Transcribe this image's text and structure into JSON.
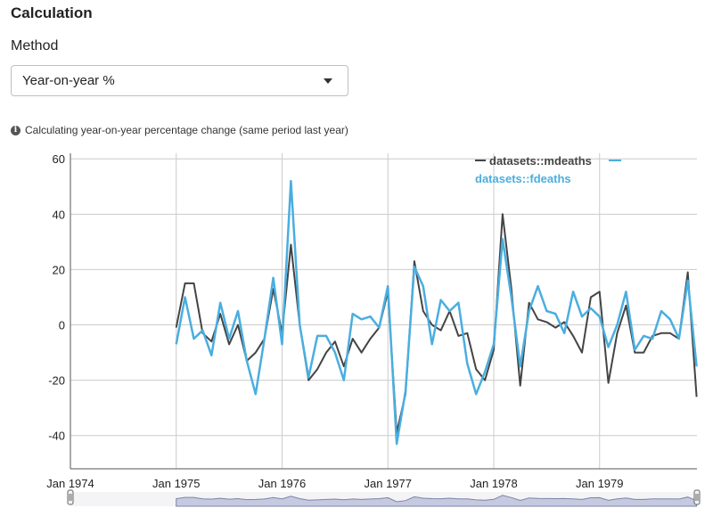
{
  "section": {
    "title": "Calculation"
  },
  "method": {
    "label": "Method",
    "selected": "Year-on-year %"
  },
  "info": {
    "text": "Calculating year-on-year percentage change (same period last year)"
  },
  "chart_data": {
    "type": "line",
    "xlabel": "",
    "ylabel": "",
    "ylim": [
      -50,
      60
    ],
    "yticks": [
      -40,
      -20,
      0,
      20,
      40,
      60
    ],
    "xlim": [
      1974,
      1979.92
    ],
    "xticks": [
      {
        "value": 1974,
        "label": "Jan 1974"
      },
      {
        "value": 1975,
        "label": "Jan 1975"
      },
      {
        "value": 1976,
        "label": "Jan 1976"
      },
      {
        "value": 1977,
        "label": "Jan 1977"
      },
      {
        "value": 1978,
        "label": "Jan 1978"
      },
      {
        "value": 1979,
        "label": "Jan 1979"
      }
    ],
    "grid": true,
    "legend_position": "top-right",
    "x_start": "Jan 1975",
    "x_step": "1 month",
    "series": [
      {
        "name": "datasets::mdeaths",
        "color": "#444444",
        "values": [
          -1,
          15,
          15,
          -3,
          -6,
          4,
          -7,
          0,
          -13,
          -10,
          -5,
          13,
          -3,
          29,
          0,
          -20,
          -16,
          -10,
          -6,
          -15,
          -5,
          -10,
          -5,
          -1,
          12,
          -39,
          -25,
          23,
          5,
          0,
          -2,
          5,
          -4,
          -3,
          -16,
          -20,
          -9,
          40,
          13,
          -22,
          8,
          2,
          1,
          -1,
          1,
          -4,
          -10,
          10,
          12,
          -21,
          -3,
          7,
          -10,
          -10,
          -4,
          -3,
          -3,
          -5,
          19,
          -26
        ]
      },
      {
        "name": "datasets::fdeaths",
        "color": "#4aaee0",
        "values": [
          -7,
          10,
          -5,
          -2,
          -11,
          8,
          -5,
          5,
          -13,
          -25,
          -5,
          17,
          -7,
          52,
          0,
          -19,
          -4,
          -4,
          -10,
          -20,
          4,
          2,
          3,
          -1,
          14,
          -43,
          -24,
          21,
          14,
          -7,
          9,
          5,
          8,
          -14,
          -25,
          -17,
          -7,
          31,
          10,
          -15,
          5,
          14,
          5,
          4,
          -3,
          12,
          3,
          6,
          3,
          -8,
          0,
          12,
          -9,
          -4,
          -5,
          5,
          2,
          -5,
          16,
          -15
        ]
      }
    ]
  }
}
